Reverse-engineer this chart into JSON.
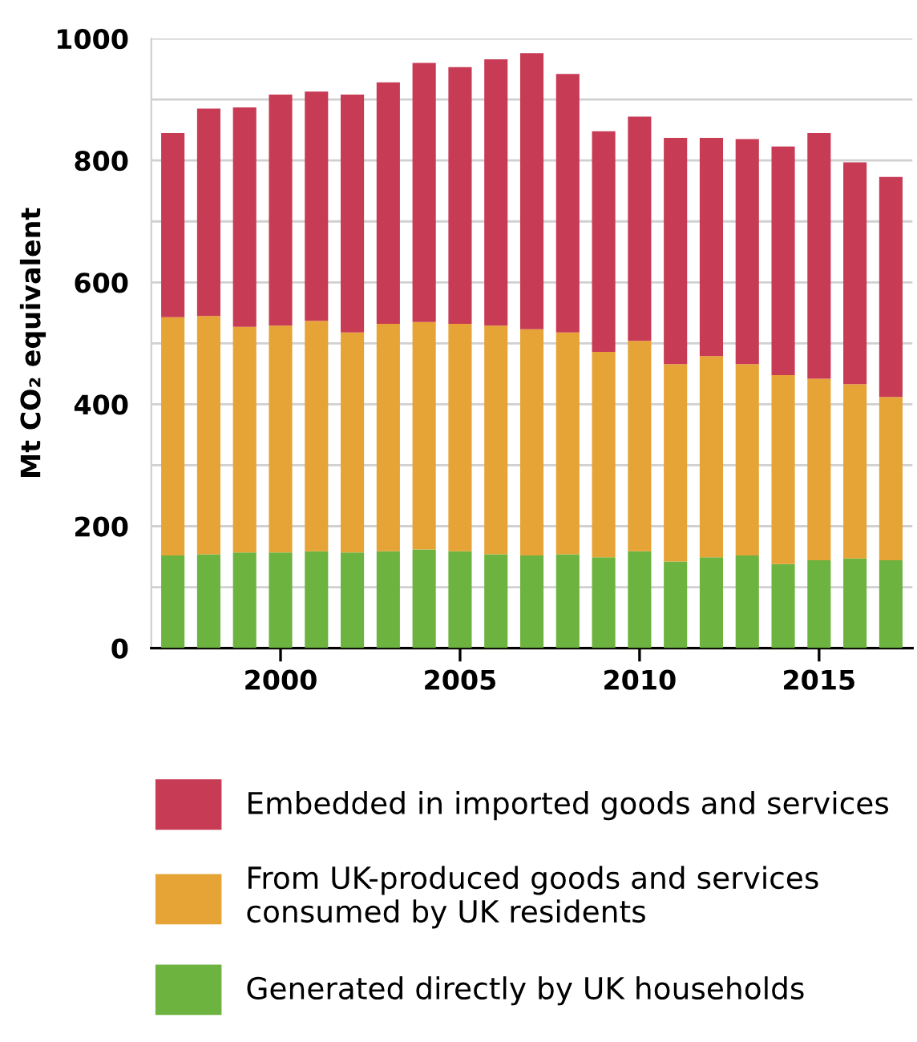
{
  "chart_data": {
    "type": "bar",
    "stacked": true,
    "ylabel": "Mt CO₂ equivalent",
    "x": [
      1997,
      1998,
      1999,
      2000,
      2001,
      2002,
      2003,
      2004,
      2005,
      2006,
      2007,
      2008,
      2009,
      2010,
      2011,
      2012,
      2013,
      2014,
      2015,
      2016,
      2017
    ],
    "series": [
      {
        "name": "Generated directly by UK households",
        "color": "#6db33f",
        "values": [
          152,
          154,
          157,
          157,
          159,
          157,
          159,
          162,
          159,
          154,
          152,
          154,
          149,
          159,
          142,
          149,
          152,
          138,
          144,
          147,
          144
        ]
      },
      {
        "name": "From UK-produced goods and services\nconsumed by UK residents",
        "color": "#e6a336",
        "values": [
          391,
          391,
          370,
          372,
          378,
          361,
          373,
          373,
          373,
          375,
          371,
          364,
          337,
          345,
          324,
          330,
          314,
          310,
          298,
          286,
          268
        ]
      },
      {
        "name": "Embedded in imported goods and services",
        "color": "#c73b55",
        "values": [
          302,
          340,
          360,
          379,
          376,
          390,
          396,
          425,
          421,
          437,
          453,
          424,
          362,
          368,
          371,
          358,
          369,
          375,
          403,
          364,
          361
        ]
      }
    ],
    "xlim": [
      1996.4,
      2017.6
    ],
    "xticks": [
      2000,
      2005,
      2010,
      2015
    ],
    "ylim": [
      0,
      1000
    ],
    "yticks": [
      0,
      {
        "value": 100,
        "label": null
      },
      200,
      {
        "value": 300,
        "label": null
      },
      400,
      {
        "value": 500,
        "label": null
      },
      600,
      {
        "value": 700,
        "label": null
      },
      800,
      {
        "value": 900,
        "label": null
      },
      1000
    ],
    "grid": "y",
    "legend": "bottom"
  }
}
